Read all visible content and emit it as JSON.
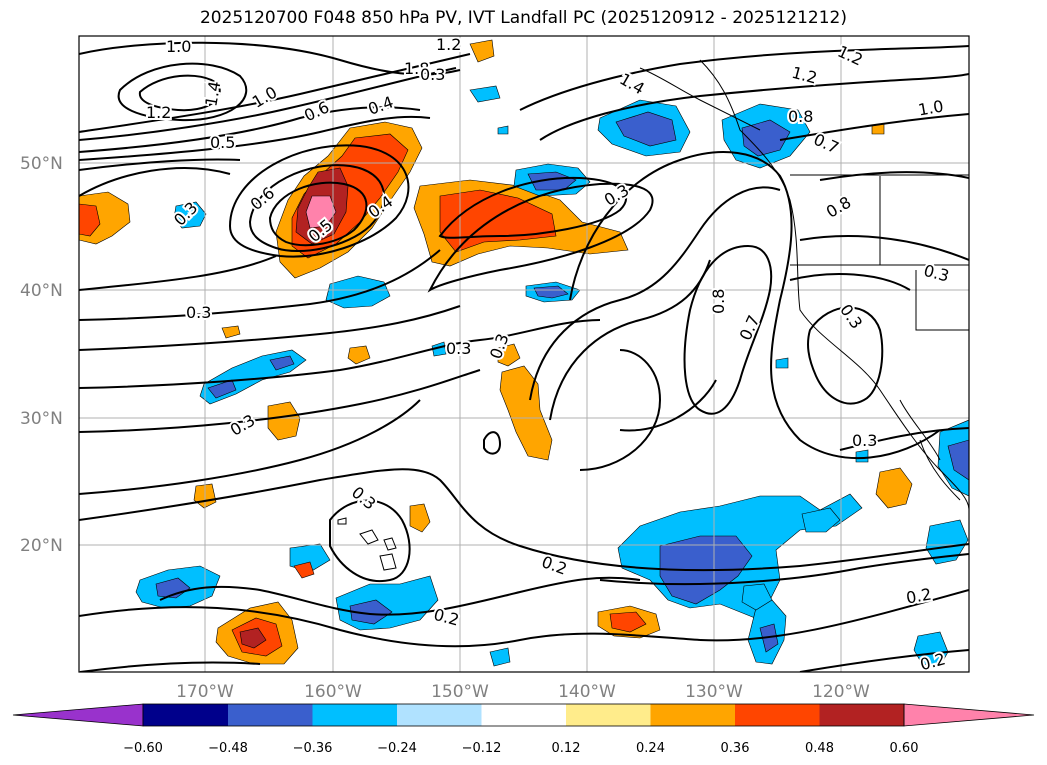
{
  "title": "2025120700 F048 850 hPa PV, IVT Landfall PC (2025120912 - 2025121212)",
  "lat_labels": [
    "50°N",
    "40°N",
    "30°N",
    "20°N"
  ],
  "lon_labels": [
    "170°W",
    "160°W",
    "150°W",
    "140°W",
    "130°W",
    "120°W"
  ],
  "colorbar": {
    "colors": [
      "#9932CC",
      "#00008B",
      "#3A5FCD",
      "#00BFFF",
      "#B0E2FF",
      "#FFFFFF",
      "#FFEC8B",
      "#FFA500",
      "#FF4500",
      "#B22222",
      "#FF82AB"
    ],
    "ticks": [
      "−0.60",
      "−0.48",
      "−0.36",
      "−0.24",
      "−0.12",
      "0.12",
      "0.24",
      "0.36",
      "0.48",
      "0.60"
    ]
  },
  "contour_labels": [
    {
      "text": "1.0"
    },
    {
      "text": "1.4"
    },
    {
      "text": "1.2"
    },
    {
      "text": "1.0"
    },
    {
      "text": "0.5"
    },
    {
      "text": "0.6"
    },
    {
      "text": "0.4"
    },
    {
      "text": "1.2"
    },
    {
      "text": "1.8"
    },
    {
      "text": "1.4"
    },
    {
      "text": "0.3"
    },
    {
      "text": "0.6"
    },
    {
      "text": "0.5"
    },
    {
      "text": "0.4"
    },
    {
      "text": "0.3"
    },
    {
      "text": "0.3"
    },
    {
      "text": "0.3"
    },
    {
      "text": "0.3"
    },
    {
      "text": "0.3"
    },
    {
      "text": "0.3"
    },
    {
      "text": "0.2"
    },
    {
      "text": "0.2"
    },
    {
      "text": "1.2"
    },
    {
      "text": "1.2"
    },
    {
      "text": "1.0"
    },
    {
      "text": "0.8"
    },
    {
      "text": "0.7"
    },
    {
      "text": "0.8"
    },
    {
      "text": "0.8"
    },
    {
      "text": "0.7"
    },
    {
      "text": "0.3"
    },
    {
      "text": "0.3"
    },
    {
      "text": "0.3"
    },
    {
      "text": "0.2"
    },
    {
      "text": "0.2"
    },
    {
      "text": "0.3"
    }
  ]
}
